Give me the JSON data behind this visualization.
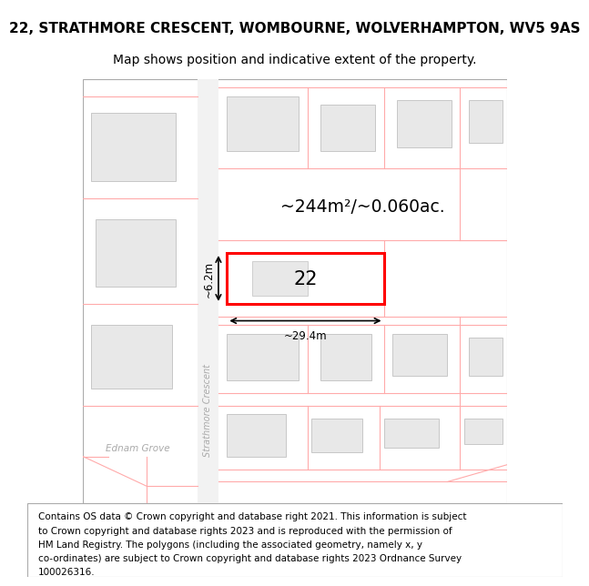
{
  "title_line1": "22, STRATHMORE CRESCENT, WOMBOURNE, WOLVERHAMPTON, WV5 9AS",
  "title_line2": "Map shows position and indicative extent of the property.",
  "footer_lines": [
    "Contains OS data © Crown copyright and database right 2021. This information is subject",
    "to Crown copyright and database rights 2023 and is reproduced with the permission of",
    "HM Land Registry. The polygons (including the associated geometry, namely x, y",
    "co-ordinates) are subject to Crown copyright and database rights 2023 Ordnance Survey",
    "100026316."
  ],
  "map_bg": "#ffffff",
  "border_color": "#aaaaaa",
  "building_fill": "#e8e8e8",
  "building_stroke": "#c0c0c0",
  "plot_fill": "#ffffff",
  "plot_stroke": "#ff0000",
  "pink_line_color": "#ffaaaa",
  "street_label": "Strathmore Crescent",
  "grove_label": "Ednam Grove",
  "area_label": "~244m²/~0.060ac.",
  "number_label": "22",
  "width_label": "~29.4m",
  "height_label": "~6.2m",
  "title_fontsize": 11,
  "subtitle_fontsize": 10,
  "footer_fontsize": 7.5
}
